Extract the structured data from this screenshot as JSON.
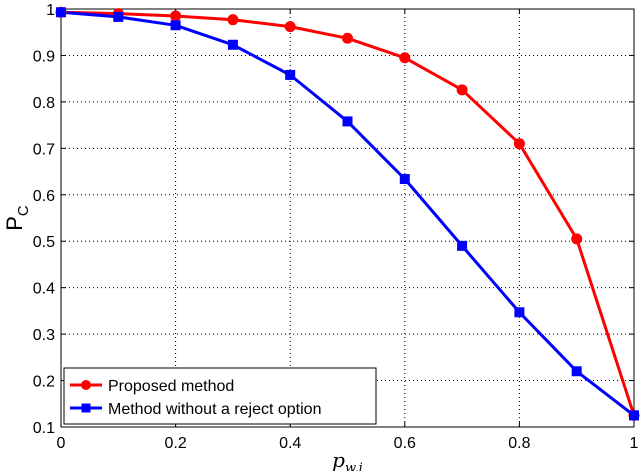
{
  "chart_data": {
    "type": "line",
    "x": [
      0,
      0.1,
      0.2,
      0.3,
      0.4,
      0.5,
      0.6,
      0.7,
      0.8,
      0.9,
      1.0
    ],
    "series": [
      {
        "name": "Proposed method",
        "values": [
          0.993,
          0.99,
          0.985,
          0.977,
          0.962,
          0.937,
          0.895,
          0.826,
          0.71,
          0.505,
          0.125
        ],
        "color": "#ff0000",
        "marker": "circle"
      },
      {
        "name": "Method without a reject option",
        "values": [
          0.993,
          0.983,
          0.965,
          0.923,
          0.858,
          0.758,
          0.634,
          0.49,
          0.347,
          0.22,
          0.125
        ],
        "color": "#0000ff",
        "marker": "square"
      }
    ],
    "xlabel_base": "p",
    "xlabel_sub": "w,i",
    "ylabel": "P",
    "ylabel_sub": "C",
    "xlim": [
      0,
      1
    ],
    "ylim": [
      0.1,
      1
    ],
    "xticks": [
      "0",
      "0.2",
      "0.4",
      "0.6",
      "0.8",
      "1"
    ],
    "yticks": [
      "0.1",
      "0.2",
      "0.3",
      "0.4",
      "0.5",
      "0.6",
      "0.7",
      "0.8",
      "0.9",
      "1"
    ],
    "grid": true,
    "legend_position": "bottom-left"
  }
}
